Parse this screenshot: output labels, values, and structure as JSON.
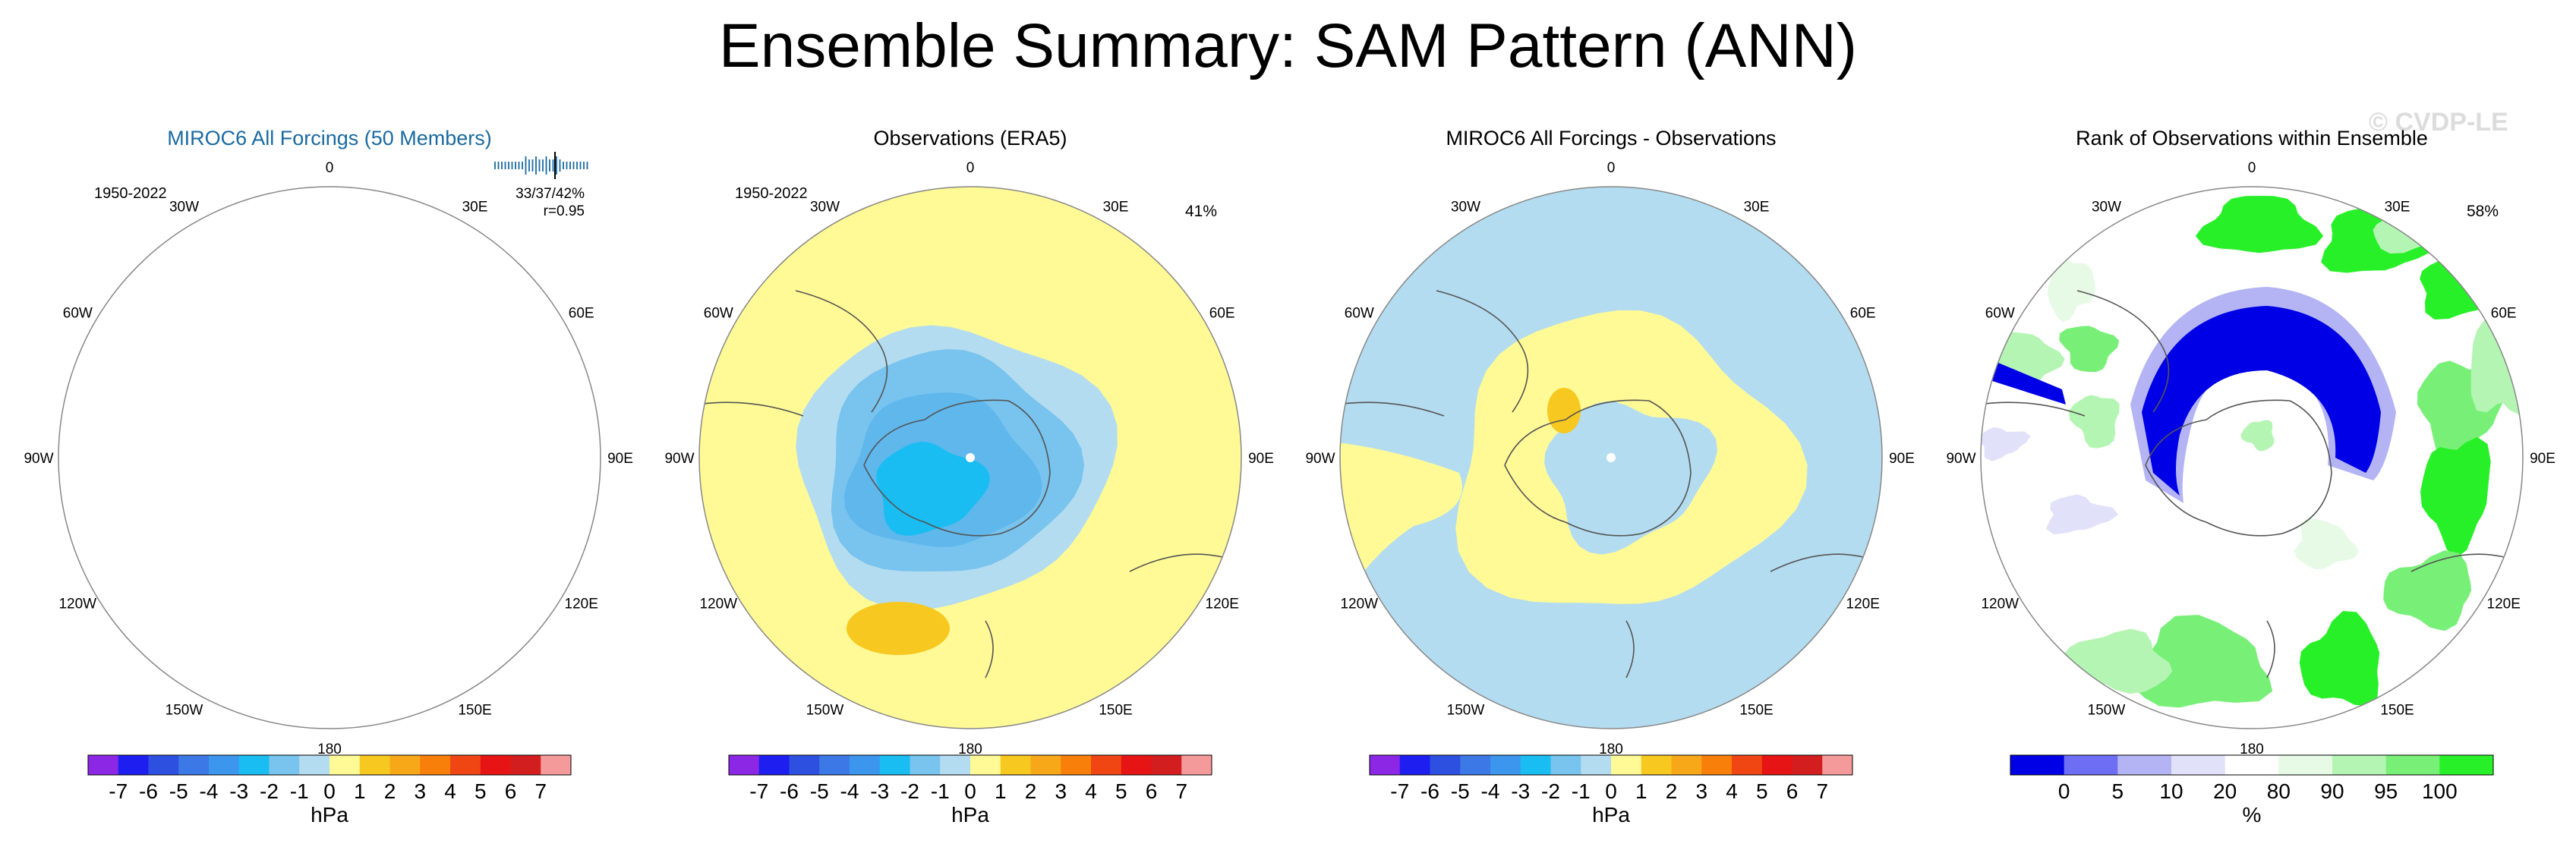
{
  "figure": {
    "title": "Ensemble Summary: SAM Pattern (ANN)",
    "watermark": "© CVDP-LE"
  },
  "colors": {
    "ocean_blue_light": "#b4dcf0",
    "land_yellow": "#fffa96",
    "blue_mid": "#78c4ee",
    "blue_strong": "#19bdf2",
    "orange": "#f7c81f",
    "rank_dark_blue": "#0000e6",
    "rank_green": "#28f028"
  },
  "chart_data": [
    {
      "type": "polar_map",
      "title": "MIROC6 All Forcings (50 Members)",
      "title_color": "#1a6aa0",
      "period": "1950-2022",
      "stats_line1": "33/37/42%",
      "stats_line2": "r=0.95",
      "longitude_labels": [
        "0",
        "30E",
        "60E",
        "90E",
        "120E",
        "150E",
        "180",
        "150W",
        "120W",
        "90W",
        "60W",
        "30W"
      ],
      "colorbar": {
        "unit": "hPa",
        "tick_labels": [
          "-7",
          "-6",
          "-5",
          "-4",
          "-3",
          "-2",
          "-1",
          "0",
          "1",
          "2",
          "3",
          "4",
          "5",
          "6",
          "7"
        ],
        "colors": [
          "#8c27e6",
          "#1e1ef0",
          "#2d50e0",
          "#3c78e6",
          "#3c96ee",
          "#19bdf2",
          "#78c4ee",
          "#b4dcf0",
          "#fffa96",
          "#f7c81f",
          "#f7a819",
          "#f77f0a",
          "#f04614",
          "#e61414",
          "#d21e1e",
          "#f59a9a"
        ]
      }
    },
    {
      "type": "polar_map",
      "title": "Observations (ERA5)",
      "title_color": "#000000",
      "period": "1950-2022",
      "pct": "41%",
      "longitude_labels": [
        "0",
        "30E",
        "60E",
        "90E",
        "120E",
        "150E",
        "180",
        "150W",
        "120W",
        "90W",
        "60W",
        "30W"
      ],
      "colorbar": {
        "unit": "hPa",
        "tick_labels": [
          "-7",
          "-6",
          "-5",
          "-4",
          "-3",
          "-2",
          "-1",
          "0",
          "1",
          "2",
          "3",
          "4",
          "5",
          "6",
          "7"
        ],
        "colors": [
          "#8c27e6",
          "#1e1ef0",
          "#2d50e0",
          "#3c78e6",
          "#3c96ee",
          "#19bdf2",
          "#78c4ee",
          "#b4dcf0",
          "#fffa96",
          "#f7c81f",
          "#f7a819",
          "#f77f0a",
          "#f04614",
          "#e61414",
          "#d21e1e",
          "#f59a9a"
        ]
      }
    },
    {
      "type": "polar_map",
      "title": "MIROC6 All Forcings - Observations",
      "title_color": "#000000",
      "longitude_labels": [
        "0",
        "30E",
        "60E",
        "90E",
        "120E",
        "150E",
        "180",
        "150W",
        "120W",
        "90W",
        "60W",
        "30W"
      ],
      "colorbar": {
        "unit": "hPa",
        "tick_labels": [
          "-7",
          "-6",
          "-5",
          "-4",
          "-3",
          "-2",
          "-1",
          "0",
          "1",
          "2",
          "3",
          "4",
          "5",
          "6",
          "7"
        ],
        "colors": [
          "#8c27e6",
          "#1e1ef0",
          "#2d50e0",
          "#3c78e6",
          "#3c96ee",
          "#19bdf2",
          "#78c4ee",
          "#b4dcf0",
          "#fffa96",
          "#f7c81f",
          "#f7a819",
          "#f77f0a",
          "#f04614",
          "#e61414",
          "#d21e1e",
          "#f59a9a"
        ]
      }
    },
    {
      "type": "polar_map",
      "title": "Rank of Observations within Ensemble",
      "title_color": "#000000",
      "pct": "58%",
      "longitude_labels": [
        "0",
        "30E",
        "60E",
        "90E",
        "120E",
        "150E",
        "180",
        "150W",
        "120W",
        "90W",
        "60W",
        "30W"
      ],
      "colorbar": {
        "unit": "%",
        "tick_labels": [
          "0",
          "5",
          "10",
          "20",
          "80",
          "90",
          "95",
          "100"
        ],
        "colors": [
          "#0000e6",
          "#6e6ef5",
          "#b4b4f5",
          "#e1e1fa",
          "#ffffff",
          "#e6fae6",
          "#b4f5b4",
          "#78f078",
          "#28f028"
        ]
      }
    }
  ]
}
